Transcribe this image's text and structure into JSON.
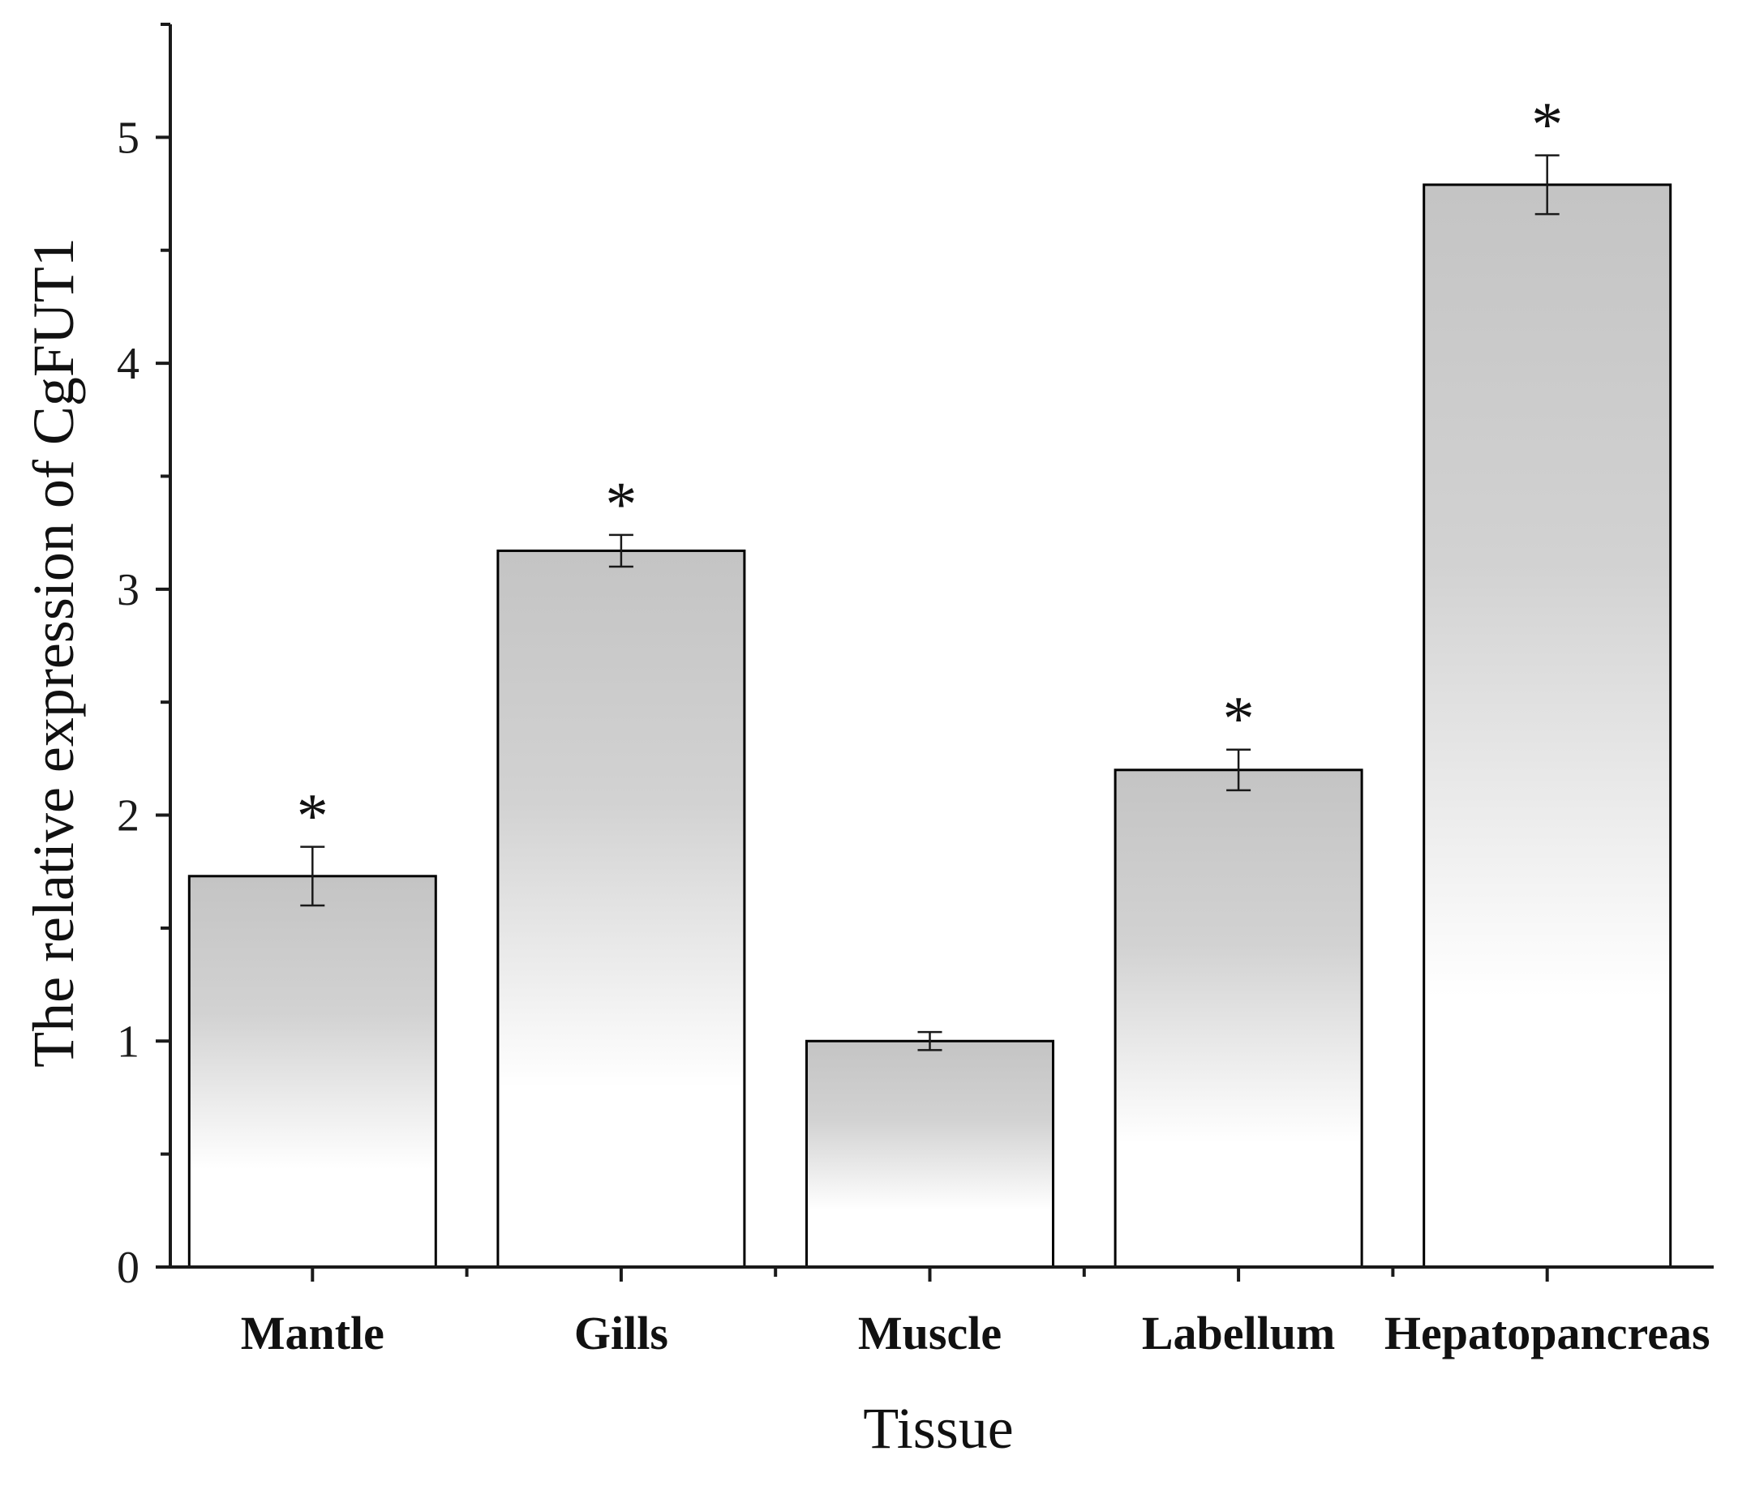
{
  "chart_data": {
    "type": "bar",
    "title": "",
    "xlabel": "Tissue",
    "ylabel": "The relative expression of CgFUT1",
    "ylim": [
      0,
      5.5
    ],
    "yticks": [
      0,
      1,
      2,
      3,
      4,
      5
    ],
    "yminor_step": 0.5,
    "categories": [
      "Mantle",
      "Gills",
      "Muscle",
      "Labellum",
      "Hepatopancreas"
    ],
    "values": [
      1.73,
      3.17,
      1.0,
      2.2,
      4.79
    ],
    "errors": [
      0.13,
      0.07,
      0.04,
      0.09,
      0.13
    ],
    "significance": [
      "*",
      "*",
      "",
      "*",
      "*"
    ],
    "grid": false,
    "legend": "none",
    "bar_gradient": {
      "top": "#c4c4c4",
      "bottom": "#ffffff"
    }
  }
}
